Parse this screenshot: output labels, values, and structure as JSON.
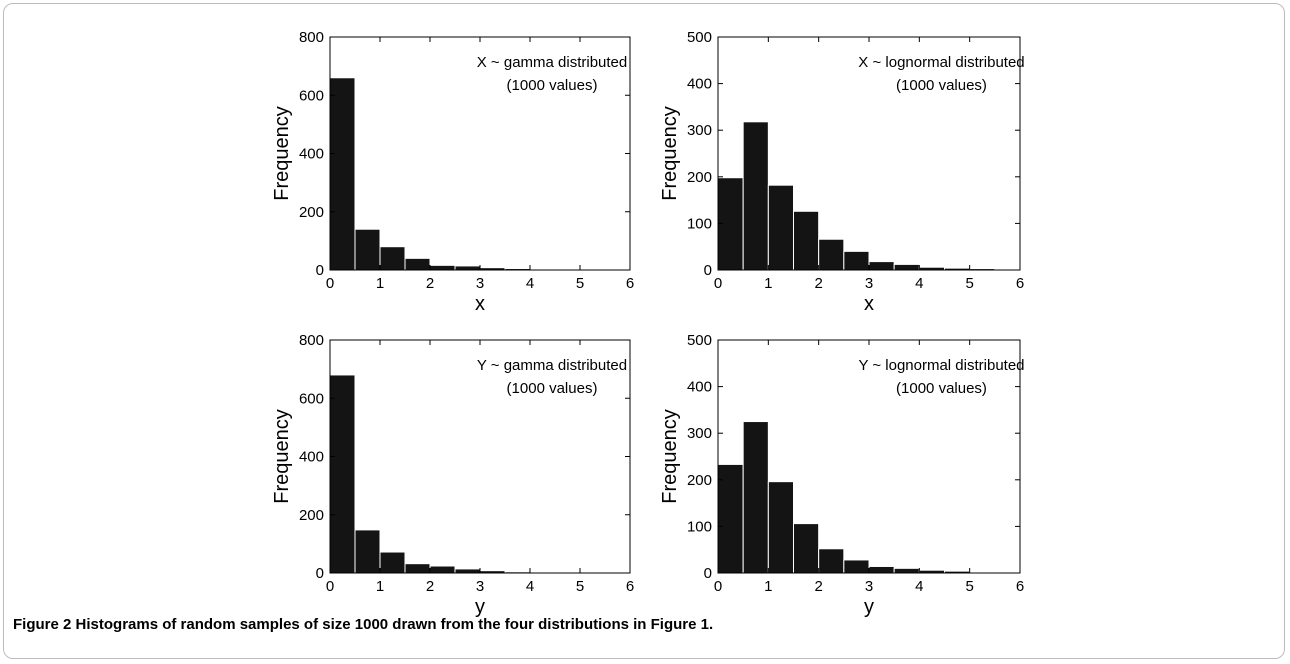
{
  "caption": {
    "label": "Figure 2",
    "text": "Histograms of random samples of size 1000 drawn from the four distributions in Figure 1."
  },
  "colors": {
    "bar": "#141414",
    "bar_edge": "#ffffff",
    "axis": "#000000"
  },
  "chart_data": [
    {
      "type": "bar",
      "title": "",
      "annotation": [
        "X ~ gamma distributed",
        "(1000 values)"
      ],
      "xlabel": "x",
      "ylabel": "Frequency",
      "bin_edges": [
        0,
        0.5,
        1,
        1.5,
        2,
        2.5,
        3,
        3.5,
        4,
        4.5,
        5,
        5.5,
        6
      ],
      "values": [
        660,
        140,
        80,
        40,
        16,
        14,
        8,
        5,
        2,
        2,
        2,
        1
      ],
      "xlim": [
        0,
        6
      ],
      "ylim": [
        0,
        800
      ],
      "xticks": [
        0,
        1,
        2,
        3,
        4,
        5,
        6
      ],
      "yticks": [
        0,
        200,
        400,
        600,
        800
      ],
      "grid": false,
      "legend": "none"
    },
    {
      "type": "bar",
      "title": "",
      "annotation": [
        "X ~ lognormal distributed",
        "(1000 values)"
      ],
      "xlabel": "x",
      "ylabel": "Frequency",
      "bin_edges": [
        0,
        0.5,
        1,
        1.5,
        2,
        2.5,
        3,
        3.5,
        4,
        4.5,
        5,
        5.5,
        6
      ],
      "values": [
        198,
        318,
        182,
        126,
        66,
        40,
        18,
        12,
        6,
        4,
        3,
        1
      ],
      "xlim": [
        0,
        6
      ],
      "ylim": [
        0,
        500
      ],
      "xticks": [
        0,
        1,
        2,
        3,
        4,
        5,
        6
      ],
      "yticks": [
        0,
        100,
        200,
        300,
        400,
        500
      ],
      "grid": false,
      "legend": "none"
    },
    {
      "type": "bar",
      "title": "",
      "annotation": [
        "Y ~ gamma distributed",
        "(1000 values)"
      ],
      "xlabel": "y",
      "ylabel": "Frequency",
      "bin_edges": [
        0,
        0.5,
        1,
        1.5,
        2,
        2.5,
        3,
        3.5,
        4,
        4.5,
        5,
        5.5,
        6
      ],
      "values": [
        680,
        148,
        72,
        32,
        24,
        14,
        8,
        4,
        2,
        2,
        1,
        1
      ],
      "xlim": [
        0,
        6
      ],
      "ylim": [
        0,
        800
      ],
      "xticks": [
        0,
        1,
        2,
        3,
        4,
        5,
        6
      ],
      "yticks": [
        0,
        200,
        400,
        600,
        800
      ],
      "grid": false,
      "legend": "none"
    },
    {
      "type": "bar",
      "title": "",
      "annotation": [
        "Y ~ lognormal distributed",
        "(1000 values)"
      ],
      "xlabel": "y",
      "ylabel": "Frequency",
      "bin_edges": [
        0,
        0.5,
        1,
        1.5,
        2,
        2.5,
        3,
        3.5,
        4,
        4.5,
        5,
        5.5,
        6
      ],
      "values": [
        233,
        325,
        196,
        106,
        52,
        28,
        14,
        10,
        6,
        4,
        2,
        1
      ],
      "xlim": [
        0,
        6
      ],
      "ylim": [
        0,
        500
      ],
      "xticks": [
        0,
        1,
        2,
        3,
        4,
        5,
        6
      ],
      "yticks": [
        0,
        100,
        200,
        300,
        400,
        500
      ],
      "grid": false,
      "legend": "none"
    }
  ]
}
